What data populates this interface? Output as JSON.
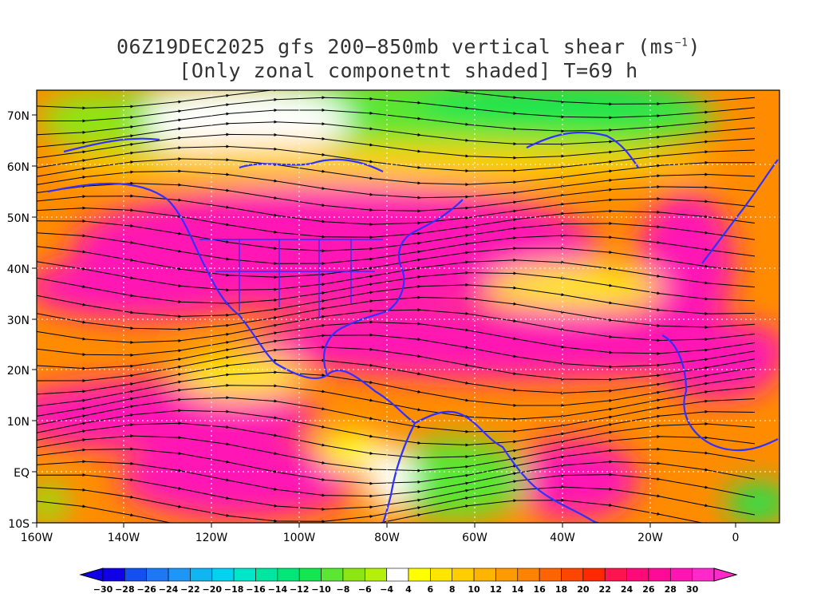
{
  "title": {
    "line1_main": "06Z19DEC2025 gfs 200−850mb vertical shear (ms",
    "line1_sup": "−1",
    "line1_end": ")",
    "line2": "[Only zonal componetnt shaded] T=69 h"
  },
  "axes": {
    "lat_labels": [
      "70N",
      "60N",
      "50N",
      "40N",
      "30N",
      "20N",
      "10N",
      "EQ",
      "10S"
    ],
    "lon_labels": [
      "160W",
      "140W",
      "120W",
      "100W",
      "80W",
      "60W",
      "40W",
      "20W",
      "0"
    ]
  },
  "colorbar": {
    "labels": [
      "−30",
      "−28",
      "−26",
      "−24",
      "−22",
      "−20",
      "−18",
      "−16",
      "−14",
      "−12",
      "−10",
      "−8",
      "−6",
      "−4",
      "4",
      "6",
      "8",
      "10",
      "12",
      "14",
      "16",
      "18",
      "20",
      "22",
      "24",
      "26",
      "28",
      "30"
    ],
    "colors": [
      "#1000e6",
      "#1450f0",
      "#1e78f5",
      "#1e96f8",
      "#0fb4f0",
      "#00d2f0",
      "#00e6c8",
      "#00e6a0",
      "#00e678",
      "#14e650",
      "#5ae632",
      "#8ce614",
      "#b4f00a",
      "#ffffff",
      "#ffff00",
      "#ffe600",
      "#ffcd00",
      "#ffb400",
      "#ff9b00",
      "#ff8200",
      "#ff6400",
      "#ff4600",
      "#ff2800",
      "#ff1450",
      "#ff0a78",
      "#ff0a96",
      "#ff14b4",
      "#ff28c8"
    ]
  },
  "map_colors": {
    "coast": "#3030ff",
    "contour": "#9b20c0",
    "streamline": "#000000",
    "grid": "#ffffff"
  }
}
